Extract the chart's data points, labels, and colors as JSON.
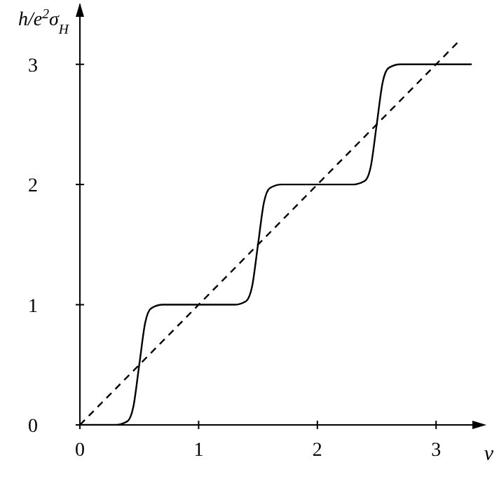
{
  "chart_data": {
    "type": "line",
    "xlabel": "ν",
    "ylabel": "h/e$^{2}$σ$_{H}$",
    "x": [
      0,
      0.3,
      0.4,
      0.45,
      0.5,
      0.55,
      0.6,
      0.7,
      1.3,
      1.4,
      1.45,
      1.5,
      1.55,
      1.6,
      1.7,
      2.3,
      2.4,
      2.45,
      2.5,
      2.55,
      2.6,
      2.7,
      3.3
    ],
    "series": [
      {
        "color": "#000000",
        "line_style": "solid",
        "values": [
          0,
          0,
          0.03,
          0.15,
          0.5,
          0.85,
          0.97,
          1,
          1,
          1.03,
          1.15,
          1.5,
          1.85,
          1.97,
          2,
          2,
          2.03,
          2.15,
          2.5,
          2.85,
          2.97,
          3,
          3
        ]
      },
      {
        "color": "#000000",
        "line_style": "dashed",
        "x": [
          0,
          3.2
        ],
        "values": [
          0,
          3.2
        ]
      }
    ],
    "xlim": [
      0,
      3.4
    ],
    "ylim": [
      0,
      3.5
    ],
    "xticks": [
      0,
      1,
      2,
      3
    ],
    "yticks": [
      0,
      1,
      2,
      3
    ],
    "grid": false,
    "marker": "none"
  }
}
